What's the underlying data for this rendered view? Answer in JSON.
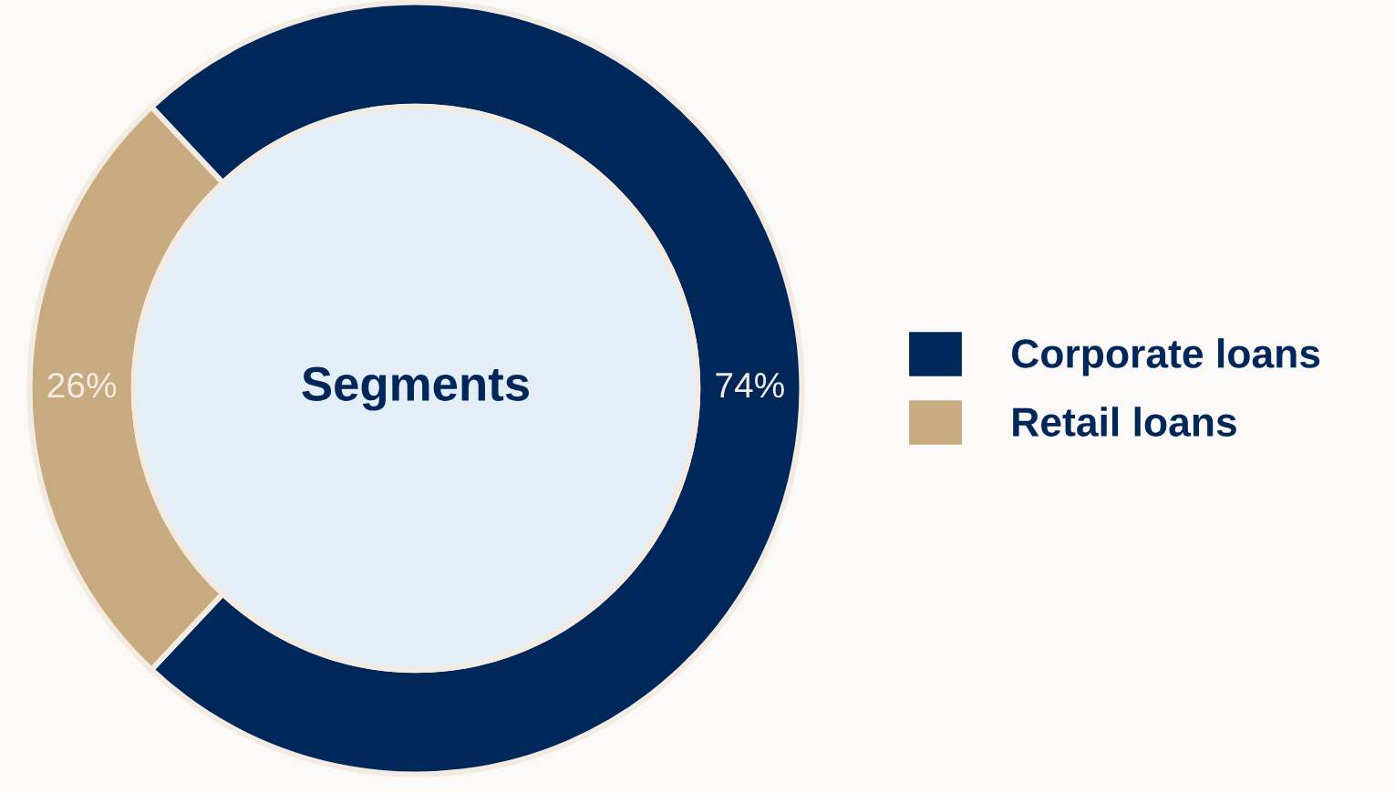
{
  "chart_data": {
    "type": "donut",
    "title": "Segments",
    "categories": [
      "Corporate loans",
      "Retail loans"
    ],
    "values": [
      74,
      26
    ],
    "colors": [
      "#00275a",
      "#c8aa80"
    ],
    "value_labels": [
      "74%",
      "26%"
    ],
    "legend": "right"
  }
}
